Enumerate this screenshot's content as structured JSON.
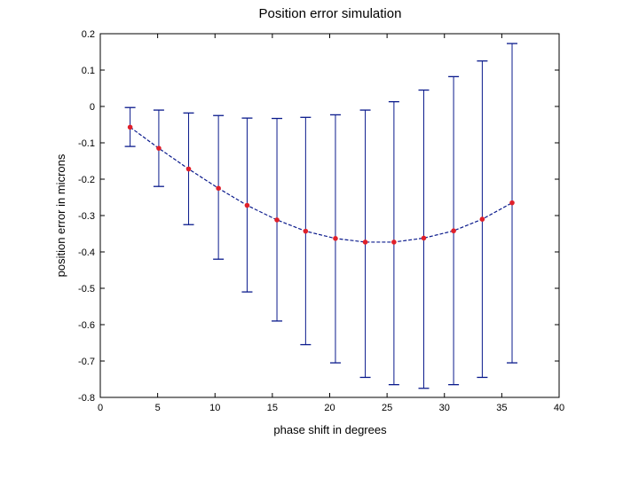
{
  "chart_data": {
    "type": "line",
    "title": "Position error simulation",
    "xlabel": "phase shift in degrees",
    "ylabel": "position error in microns",
    "xlim": [
      0,
      40
    ],
    "ylim": [
      -0.8,
      0.2
    ],
    "xticks": [
      "0",
      "5",
      "10",
      "15",
      "20",
      "25",
      "30",
      "35",
      "40"
    ],
    "yticks": [
      "0.2",
      "0.1",
      "0",
      "-0.1",
      "-0.2",
      "-0.3",
      "-0.4",
      "-0.5",
      "-0.6",
      "-0.7",
      "-0.8"
    ],
    "grid": false,
    "series": [
      {
        "x": [
          2.6,
          5.1,
          7.7,
          10.3,
          12.8,
          15.4,
          17.9,
          20.5,
          23.1,
          25.6,
          28.2,
          30.8,
          33.3,
          35.9
        ],
        "y": [
          -0.057,
          -0.115,
          -0.172,
          -0.225,
          -0.272,
          -0.312,
          -0.343,
          -0.363,
          -0.373,
          -0.373,
          -0.362,
          -0.342,
          -0.31,
          -0.265
        ],
        "err_low": [
          -0.11,
          -0.22,
          -0.325,
          -0.42,
          -0.51,
          -0.59,
          -0.655,
          -0.705,
          -0.745,
          -0.765,
          -0.775,
          -0.765,
          -0.745,
          -0.705
        ],
        "err_high": [
          -0.003,
          -0.01,
          -0.018,
          -0.025,
          -0.032,
          -0.033,
          -0.03,
          -0.023,
          -0.01,
          0.013,
          0.045,
          0.082,
          0.125,
          0.173
        ]
      }
    ],
    "colors": {
      "errorbar": "#0a1a8c",
      "line": "#0a1a8c",
      "marker": "#e0202a"
    }
  }
}
